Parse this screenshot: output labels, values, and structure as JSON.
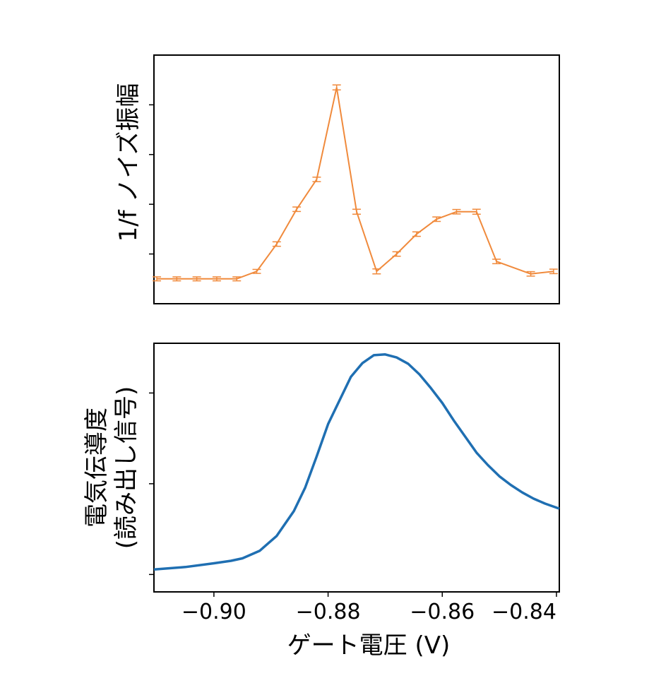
{
  "chart_data": [
    {
      "type": "line",
      "panel": "top",
      "xlabel": "",
      "ylabel": "1/f ノイズ振幅",
      "xlim": [
        -0.9105,
        -0.8395
      ],
      "ylim": [
        0,
        1
      ],
      "y_tick_labels_shown": false,
      "error_bars": true,
      "series": [
        {
          "color": "#f08a3c",
          "x": [
            -0.91,
            -0.9065,
            -0.903,
            -0.8995,
            -0.896,
            -0.8925,
            -0.889,
            -0.8855,
            -0.882,
            -0.8785,
            -0.875,
            -0.8715,
            -0.868,
            -0.8645,
            -0.861,
            -0.8575,
            -0.854,
            -0.8505,
            -0.8445,
            -0.8405
          ],
          "y": [
            0.1,
            0.1,
            0.1,
            0.1,
            0.1,
            0.13,
            0.24,
            0.38,
            0.5,
            0.87,
            0.37,
            0.13,
            0.2,
            0.28,
            0.34,
            0.37,
            0.37,
            0.17,
            0.12,
            0.13
          ],
          "yerr": [
            0.008,
            0.008,
            0.008,
            0.008,
            0.008,
            0.008,
            0.009,
            0.009,
            0.009,
            0.01,
            0.01,
            0.01,
            0.009,
            0.009,
            0.009,
            0.009,
            0.01,
            0.009,
            0.009,
            0.009
          ]
        }
      ]
    },
    {
      "type": "line",
      "panel": "bottom",
      "xlabel": "ゲート電圧 (V)",
      "ylabel": "電気伝導度\n(読み出し信号)",
      "xlim": [
        -0.9105,
        -0.8395
      ],
      "ylim": [
        0,
        1
      ],
      "x_ticks": [
        -0.9,
        -0.88,
        -0.86,
        -0.84
      ],
      "x_tick_labels": [
        "−0.90",
        "−0.88",
        "−0.86",
        "−0.84"
      ],
      "y_tick_labels_shown": false,
      "series": [
        {
          "color": "#1f6fb2",
          "x": [
            -0.9105,
            -0.905,
            -0.9,
            -0.897,
            -0.895,
            -0.892,
            -0.889,
            -0.886,
            -0.884,
            -0.882,
            -0.88,
            -0.878,
            -0.876,
            -0.874,
            -0.872,
            -0.87,
            -0.868,
            -0.866,
            -0.864,
            -0.862,
            -0.86,
            -0.858,
            -0.856,
            -0.854,
            -0.852,
            -0.85,
            -0.848,
            -0.846,
            -0.844,
            -0.842,
            -0.8395
          ],
          "y": [
            0.09,
            0.1,
            0.115,
            0.125,
            0.135,
            0.165,
            0.225,
            0.325,
            0.42,
            0.545,
            0.675,
            0.77,
            0.865,
            0.92,
            0.952,
            0.955,
            0.943,
            0.918,
            0.875,
            0.82,
            0.76,
            0.69,
            0.625,
            0.56,
            0.51,
            0.465,
            0.43,
            0.4,
            0.375,
            0.355,
            0.335
          ]
        }
      ]
    }
  ]
}
